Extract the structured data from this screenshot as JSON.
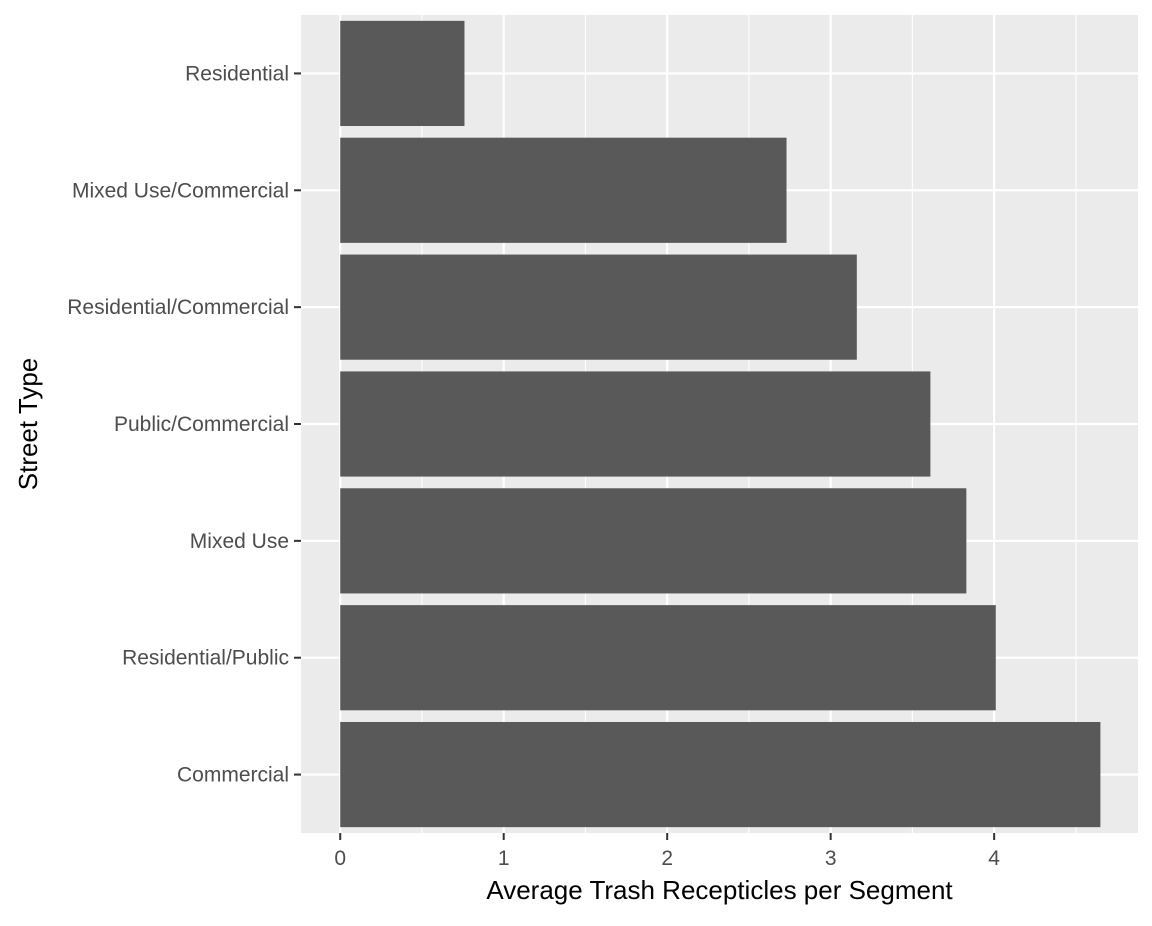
{
  "chart_data": {
    "type": "bar",
    "orientation": "horizontal",
    "categories": [
      "Residential",
      "Mixed Use/Commercial",
      "Residential/Commercial",
      "Public/Commercial",
      "Mixed Use",
      "Residential/Public",
      "Commercial"
    ],
    "values": [
      0.76,
      2.73,
      3.16,
      3.61,
      3.83,
      4.01,
      4.65
    ],
    "xlabel": "Average Trash Recepticles per Segment",
    "ylabel": "Street Type",
    "x_ticks": [
      "0",
      "1",
      "2",
      "3",
      "4"
    ],
    "xlim": [
      -0.24,
      4.88
    ],
    "grid": true,
    "legend": "none",
    "colors": {
      "bar": "#595959",
      "panel": "#ebebeb",
      "grid": "#ffffff"
    }
  }
}
